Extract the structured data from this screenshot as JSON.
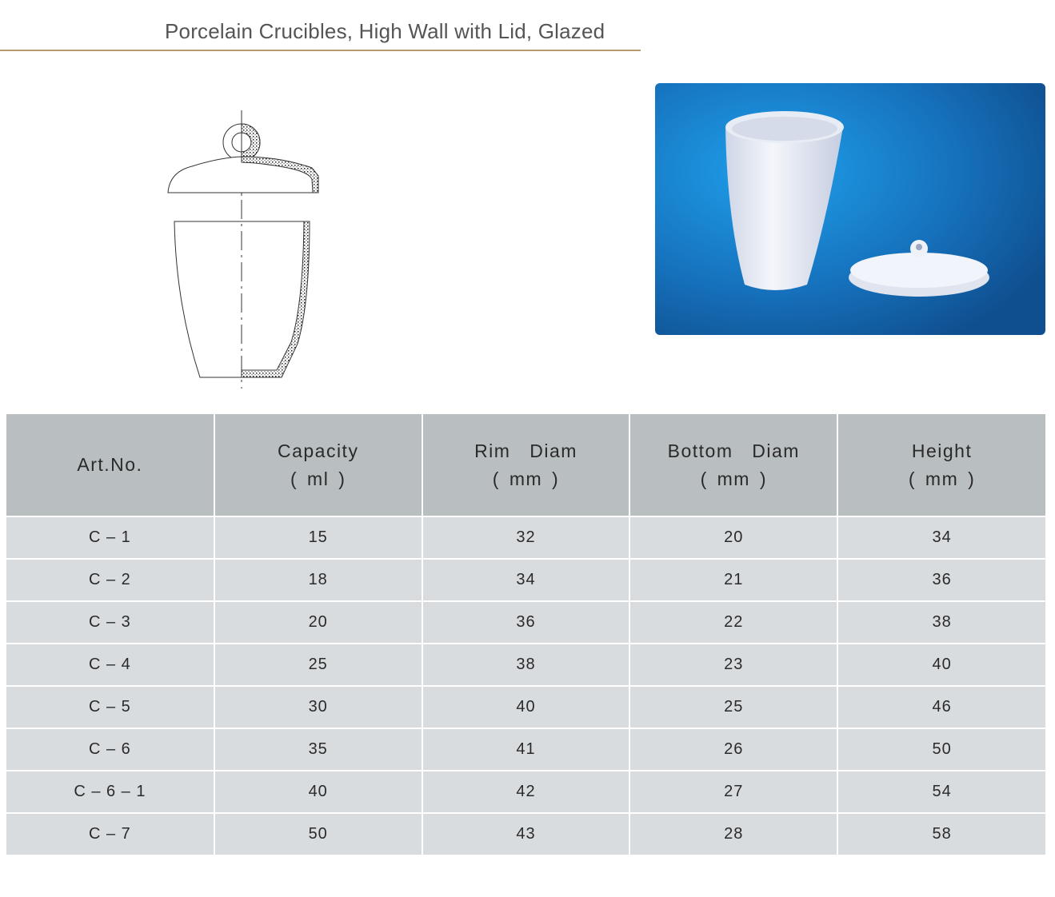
{
  "title": "Porcelain Crucibles, High Wall with Lid, Glazed",
  "colors": {
    "rule": "#b8996a",
    "header_bg": "#b9bec1",
    "row_bg": "#d9dcdf",
    "photo_bg": "#1a78c8"
  },
  "table": {
    "headers": [
      {
        "label": "Art.No.",
        "unit": ""
      },
      {
        "label": "Capacity",
        "unit": "( ml )"
      },
      {
        "label": "Rim  Diam",
        "unit": "( mm )"
      },
      {
        "label": "Bottom  Diam",
        "unit": "( mm )"
      },
      {
        "label": "Height",
        "unit": "( mm )"
      }
    ],
    "rows": [
      [
        "C – 1",
        "15",
        "32",
        "20",
        "34"
      ],
      [
        "C – 2",
        "18",
        "34",
        "21",
        "36"
      ],
      [
        "C – 3",
        "20",
        "36",
        "22",
        "38"
      ],
      [
        "C – 4",
        "25",
        "38",
        "23",
        "40"
      ],
      [
        "C – 5",
        "30",
        "40",
        "25",
        "46"
      ],
      [
        "C – 6",
        "35",
        "41",
        "26",
        "50"
      ],
      [
        "C – 6 – 1",
        "40",
        "42",
        "27",
        "54"
      ],
      [
        "C – 7",
        "50",
        "43",
        "28",
        "58"
      ]
    ]
  }
}
